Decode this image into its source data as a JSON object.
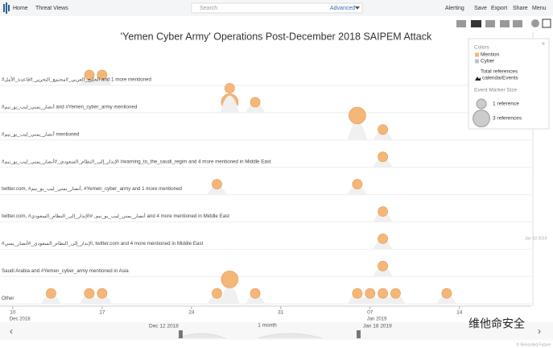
{
  "nav": {
    "items": [
      "Home",
      "Threat Views"
    ],
    "search_placeholder": "Search",
    "advanced": "Advanced",
    "right_items": [
      "Alerting",
      "Save",
      "Export",
      "Share",
      "Menu"
    ]
  },
  "chart_data": {
    "type": "event-timeline",
    "title": "'Yemen Cyber Army' Operations Post-December 2018 SAIPEM Attack",
    "xlim": [
      "2018-12-09",
      "2019-01-19"
    ],
    "xticks": [
      {
        "value": "2018-12-10",
        "label": "10",
        "sublabel": "Dec 2018"
      },
      {
        "value": "2018-12-17",
        "label": "17"
      },
      {
        "value": "2018-12-24",
        "label": "24"
      },
      {
        "value": "2018-12-31",
        "label": "31"
      },
      {
        "value": "2019-01-07",
        "label": "07",
        "sublabel": "Jan 2019"
      },
      {
        "value": "2019-01-14",
        "label": "14"
      }
    ],
    "color": "#f5b778",
    "rows": [
      {
        "label": "#الخليج_العربي_#مجتمع_التحرير_#قاعدة_الأمل and 1 more mentioned",
        "events": [
          {
            "x": "2018-12-16",
            "references": 1
          },
          {
            "x": "2018-12-17",
            "references": 1
          }
        ]
      },
      {
        "label": "#أنصار_يمني_ليب_يو_نيم and #Yemen_cyber_army mentioned",
        "events": [
          {
            "x": "2018-12-27",
            "references": 3
          },
          {
            "x": "2018-12-27",
            "references": 1
          },
          {
            "x": "2018-12-29",
            "references": 1
          }
        ]
      },
      {
        "label": "#أنصار_يمني_ليب_يو_نيم mentioned",
        "events": [
          {
            "x": "2019-01-06",
            "references": 1
          },
          {
            "x": "2019-01-06",
            "references": 3
          },
          {
            "x": "2019-01-08",
            "references": 1
          }
        ]
      },
      {
        "label": "#الإنذار_إلى_النظام_السعودي_#أنصار_يمني_ليب_يو_نيم #warning_to_the_saudi_regim and 4 more mentioned in Middle East",
        "events": [
          {
            "x": "2019-01-08",
            "references": 1
          }
        ]
      },
      {
        "label": "twitter.com, #أنصار_يمني_ليب_يو_نيم, #Yemen_cyber_army and 1 more mentioned",
        "events": [
          {
            "x": "2018-12-26",
            "references": 1
          },
          {
            "x": "2019-01-06",
            "references": 1
          }
        ]
      },
      {
        "label": "twitter.com, #أنصار_يمني_ليب_يو_نيم, #الإنذار_إلى_النظام_السعودي and 4 more mentioned in Middle East",
        "events": [
          {
            "x": "2019-01-08",
            "references": 1
          }
        ]
      },
      {
        "label": "#الإنذار_إلى_النظام_السعودي_#أنصار_يمني, twitter.com and 4 more mentioned in Middle East",
        "events": [
          {
            "x": "2019-01-08",
            "references": 1
          }
        ]
      },
      {
        "label": "Saudi Arabia and #Yemen_cyber_army mentioned in Asia",
        "events": [
          {
            "x": "2019-01-08",
            "references": 1
          }
        ]
      },
      {
        "label": "Other",
        "events": [
          {
            "x": "2018-12-13",
            "references": 1
          },
          {
            "x": "2018-12-16",
            "references": 1
          },
          {
            "x": "2018-12-17",
            "references": 1
          },
          {
            "x": "2018-12-26",
            "references": 1
          },
          {
            "x": "2018-12-27",
            "references": 1
          },
          {
            "x": "2018-12-27",
            "references": 3
          },
          {
            "x": "2018-12-29",
            "references": 1
          },
          {
            "x": "2019-01-06",
            "references": 1
          },
          {
            "x": "2019-01-07",
            "references": 1
          },
          {
            "x": "2019-01-08",
            "references": 1
          },
          {
            "x": "2019-01-09",
            "references": 1
          },
          {
            "x": "2019-01-13",
            "references": 1
          }
        ]
      }
    ],
    "legend": {
      "colors_title": "Colors",
      "colors": [
        {
          "label": "Mention",
          "color": "#f5b778"
        },
        {
          "label": "Cyber",
          "color": "#b8c4d0"
        }
      ],
      "total": "Total references",
      "calendar": "calendarEvents",
      "size_title": "Event Marker Size",
      "sizes": [
        {
          "value": 1,
          "label": "1 reference"
        },
        {
          "value": 3,
          "label": "3 references"
        }
      ]
    }
  },
  "navigator": {
    "start": "Dec 12 2018",
    "span": "1 month",
    "end": "Jan 18 2019",
    "marker": "Jan 10 2019"
  },
  "footer": {
    "credit": "© Recorded Future",
    "watermark": "维他命安全"
  }
}
